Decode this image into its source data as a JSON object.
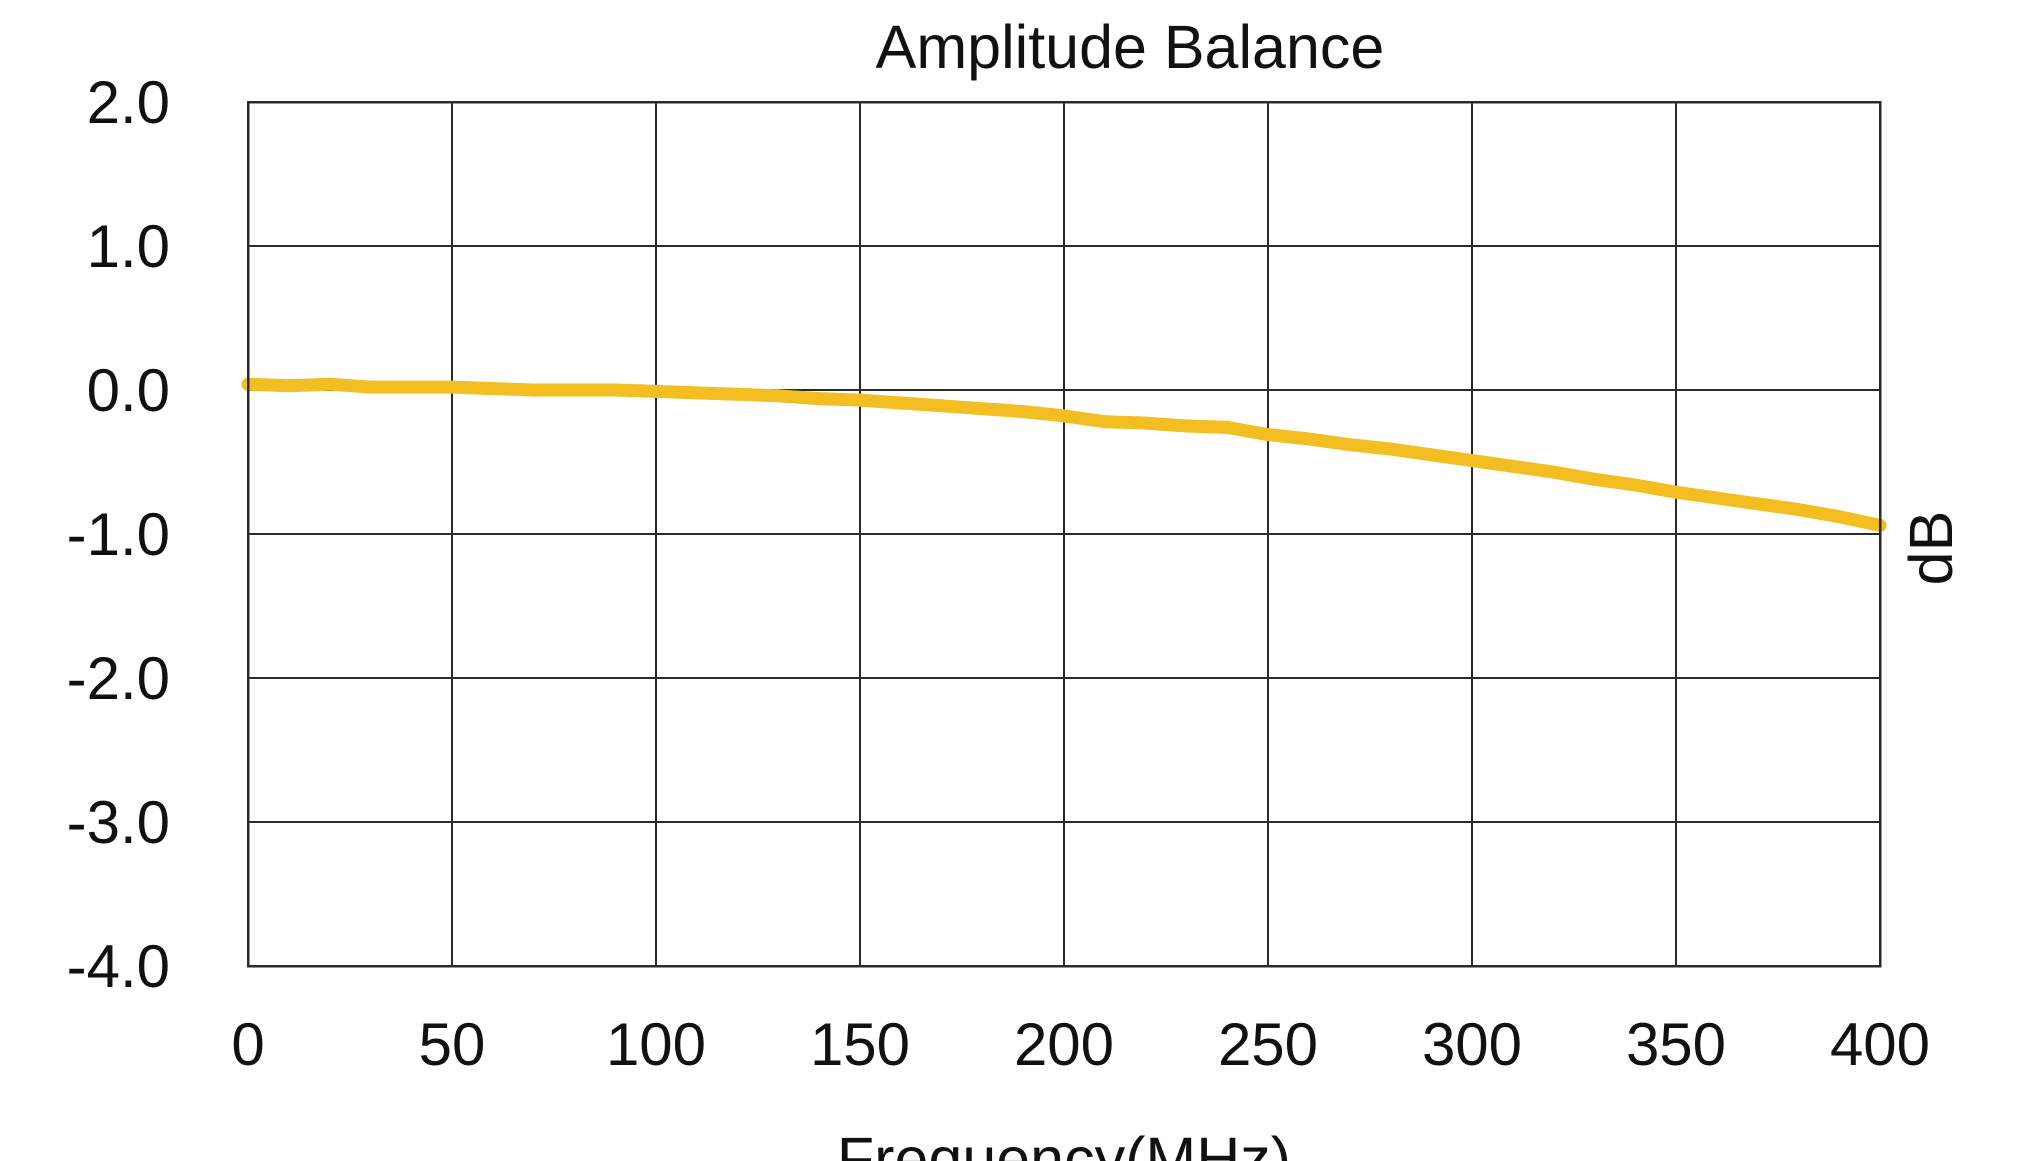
{
  "chart_data": {
    "type": "line",
    "title": "Amplitude Balance",
    "xlabel": "Frequency(MHz)",
    "ylabel": "dB",
    "xlim": [
      0,
      400
    ],
    "ylim": [
      -4.0,
      2.0
    ],
    "x_ticks": [
      0,
      50,
      100,
      150,
      200,
      250,
      300,
      350,
      400
    ],
    "x_tick_labels": [
      "0",
      "50",
      "100",
      "150",
      "200",
      "250",
      "300",
      "350",
      "400"
    ],
    "y_ticks": [
      2.0,
      1.0,
      0.0,
      -1.0,
      -2.0,
      -3.0,
      -4.0
    ],
    "y_tick_labels": [
      "2.0",
      "1.0",
      "0.0",
      "-1.0",
      "-2.0",
      "-3.0",
      "-4.0"
    ],
    "grid": true,
    "series": [
      {
        "color": "#F2BE22",
        "x": [
          0,
          10,
          20,
          30,
          40,
          50,
          60,
          70,
          80,
          90,
          100,
          110,
          120,
          130,
          140,
          150,
          160,
          170,
          180,
          190,
          200,
          210,
          220,
          230,
          240,
          250,
          260,
          270,
          280,
          290,
          300,
          310,
          320,
          330,
          340,
          350,
          360,
          370,
          380,
          390,
          400
        ],
        "y": [
          0.04,
          0.03,
          0.04,
          0.02,
          0.02,
          0.02,
          0.01,
          0.0,
          0.0,
          0.0,
          -0.01,
          -0.02,
          -0.03,
          -0.04,
          -0.06,
          -0.07,
          -0.09,
          -0.11,
          -0.13,
          -0.15,
          -0.18,
          -0.22,
          -0.23,
          -0.25,
          -0.26,
          -0.31,
          -0.34,
          -0.38,
          -0.41,
          -0.45,
          -0.49,
          -0.53,
          -0.57,
          -0.62,
          -0.66,
          -0.71,
          -0.75,
          -0.79,
          -0.83,
          -0.88,
          -0.94
        ]
      }
    ]
  }
}
